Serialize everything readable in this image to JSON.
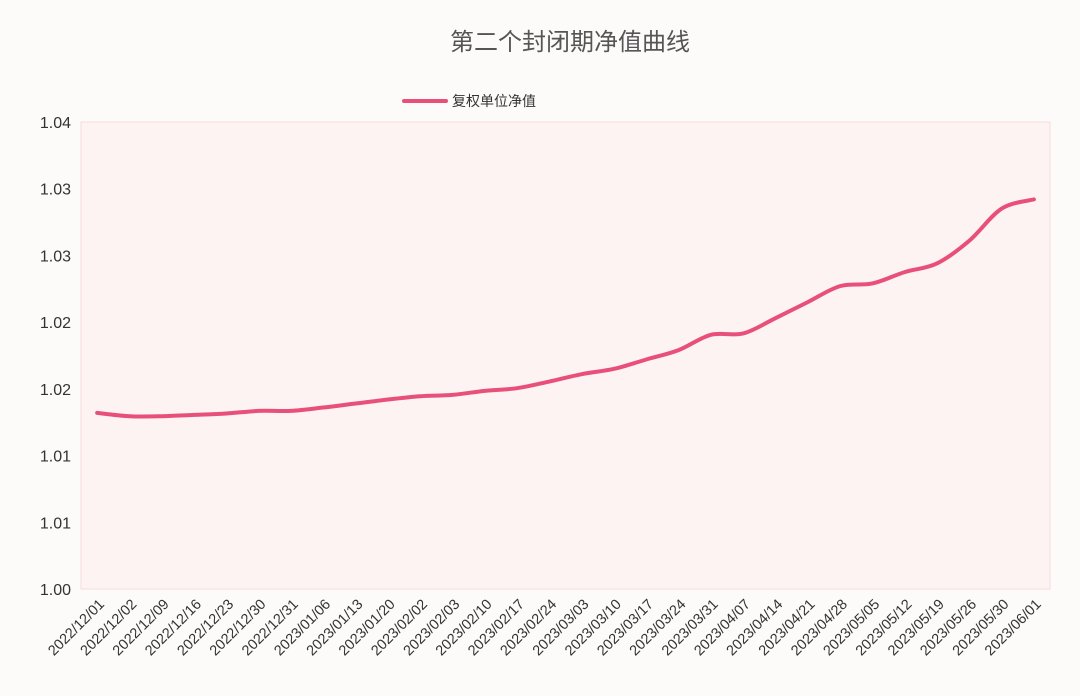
{
  "chart_data": {
    "type": "line",
    "title": "第二个封闭期净值曲线",
    "xlabel": "",
    "ylabel": "",
    "legend_position": "top",
    "grid": false,
    "ylim": [
      1.0,
      1.035
    ],
    "y_ticks": [
      "1.00",
      "1.01",
      "1.01",
      "1.02",
      "1.02",
      "1.03",
      "1.03",
      "1.04"
    ],
    "categories": [
      "2022/12/01",
      "2022/12/02",
      "2022/12/09",
      "2022/12/16",
      "2022/12/23",
      "2022/12/30",
      "2022/12/31",
      "2023/01/06",
      "2023/01/13",
      "2023/01/20",
      "2023/02/02",
      "2023/02/03",
      "2023/02/10",
      "2023/02/17",
      "2023/02/24",
      "2023/03/03",
      "2023/03/10",
      "2023/03/17",
      "2023/03/24",
      "2023/03/31",
      "2023/04/07",
      "2023/04/14",
      "2023/04/21",
      "2023/04/28",
      "2023/05/05",
      "2023/05/12",
      "2023/05/19",
      "2023/05/26",
      "2023/05/30",
      "2023/06/01"
    ],
    "series": [
      {
        "name": "复权单位净值",
        "color": "#e8507a",
        "values": [
          1.0132,
          1.01295,
          1.01295,
          1.01305,
          1.01315,
          1.01335,
          1.01335,
          1.0136,
          1.0139,
          1.0142,
          1.01445,
          1.01455,
          1.01485,
          1.01505,
          1.01555,
          1.0161,
          1.0165,
          1.0172,
          1.0179,
          1.01905,
          1.01915,
          1.0203,
          1.0215,
          1.0227,
          1.0229,
          1.02375,
          1.0244,
          1.0261,
          1.0285,
          1.0292
        ]
      }
    ]
  },
  "colors": {
    "plot_background": "#fcf3f2",
    "plot_border": "#f7dcd9",
    "line": "#e8507a"
  }
}
